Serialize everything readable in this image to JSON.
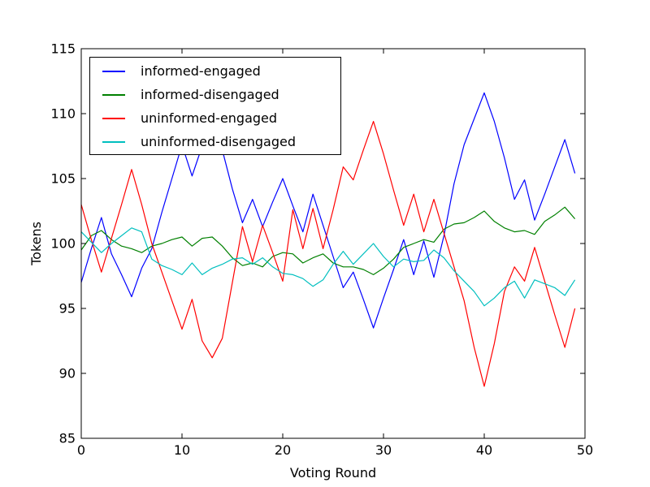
{
  "figure": {
    "background": "#ffffff",
    "axes_color": "#000000",
    "x_ticks": [
      0,
      10,
      20,
      30,
      40,
      50
    ],
    "y_ticks": [
      85,
      90,
      95,
      100,
      105,
      110,
      115
    ]
  },
  "legend": {
    "entries": [
      {
        "label": "informed-engaged",
        "color": "#0000ff"
      },
      {
        "label": "informed-disengaged",
        "color": "#008000"
      },
      {
        "label": "uninformed-engaged",
        "color": "#ff0000"
      },
      {
        "label": "uninformed-disengaged",
        "color": "#00bfbf"
      }
    ]
  },
  "chart_data": {
    "type": "line",
    "title": "",
    "xlabel": "Voting Round",
    "ylabel": "Tokens",
    "xlim": [
      0,
      50
    ],
    "ylim": [
      85,
      115
    ],
    "grid": false,
    "legend_position": "upper left",
    "x_start": 0,
    "x_step": 1,
    "n_points": 50,
    "series": [
      {
        "name": "informed-engaged",
        "color": "#0000ff",
        "values": [
          97.0,
          99.6,
          102.0,
          99.2,
          97.6,
          95.9,
          98.1,
          99.6,
          102.4,
          105.0,
          107.6,
          105.2,
          107.5,
          107.9,
          107.2,
          104.2,
          101.6,
          103.4,
          101.3,
          103.2,
          105.0,
          102.9,
          100.9,
          103.8,
          101.4,
          99.0,
          96.6,
          97.8,
          95.7,
          93.5,
          95.8,
          98.0,
          100.3,
          97.6,
          100.2,
          97.4,
          100.6,
          104.6,
          107.6,
          109.6,
          111.6,
          109.4,
          106.6,
          103.4,
          104.9,
          101.8,
          103.8,
          105.9,
          108.0,
          105.4
        ]
      },
      {
        "name": "informed-disengaged",
        "color": "#008000",
        "values": [
          99.5,
          100.6,
          101.0,
          100.3,
          99.8,
          99.6,
          99.3,
          99.8,
          100.0,
          100.3,
          100.5,
          99.8,
          100.4,
          100.5,
          99.8,
          98.9,
          98.3,
          98.5,
          98.2,
          99.0,
          99.3,
          99.2,
          98.5,
          98.9,
          99.2,
          98.5,
          98.2,
          98.2,
          98.0,
          97.6,
          98.1,
          98.8,
          99.7,
          100.0,
          100.3,
          100.1,
          101.1,
          101.5,
          101.6,
          102.0,
          102.5,
          101.7,
          101.2,
          100.9,
          101.0,
          100.7,
          101.7,
          102.2,
          102.8,
          101.9
        ]
      },
      {
        "name": "uninformed-engaged",
        "color": "#ff0000",
        "values": [
          103.0,
          100.3,
          97.8,
          100.4,
          103.0,
          105.7,
          103.0,
          100.0,
          97.8,
          95.6,
          93.4,
          95.7,
          92.5,
          91.2,
          92.7,
          97.0,
          101.3,
          98.6,
          101.4,
          99.3,
          97.1,
          102.6,
          99.6,
          102.7,
          99.6,
          102.6,
          105.9,
          104.9,
          107.2,
          109.4,
          106.9,
          104.1,
          101.4,
          103.8,
          100.9,
          103.4,
          100.8,
          98.2,
          95.6,
          92.0,
          89.0,
          92.3,
          96.3,
          98.2,
          97.1,
          99.7,
          97.1,
          94.5,
          92.0,
          95.0
        ]
      },
      {
        "name": "uninformed-disengaged",
        "color": "#00bfbf",
        "values": [
          100.9,
          100.1,
          99.3,
          100.0,
          100.6,
          101.2,
          100.9,
          98.8,
          98.3,
          98.0,
          97.6,
          98.5,
          97.6,
          98.1,
          98.4,
          98.8,
          98.9,
          98.4,
          98.9,
          98.2,
          97.7,
          97.6,
          97.3,
          96.7,
          97.2,
          98.4,
          99.4,
          98.4,
          99.2,
          100.0,
          99.0,
          98.2,
          98.8,
          98.6,
          98.7,
          99.5,
          98.9,
          97.9,
          97.1,
          96.3,
          95.2,
          95.8,
          96.6,
          97.1,
          95.8,
          97.2,
          96.9,
          96.6,
          96.0,
          97.2
        ]
      }
    ]
  }
}
